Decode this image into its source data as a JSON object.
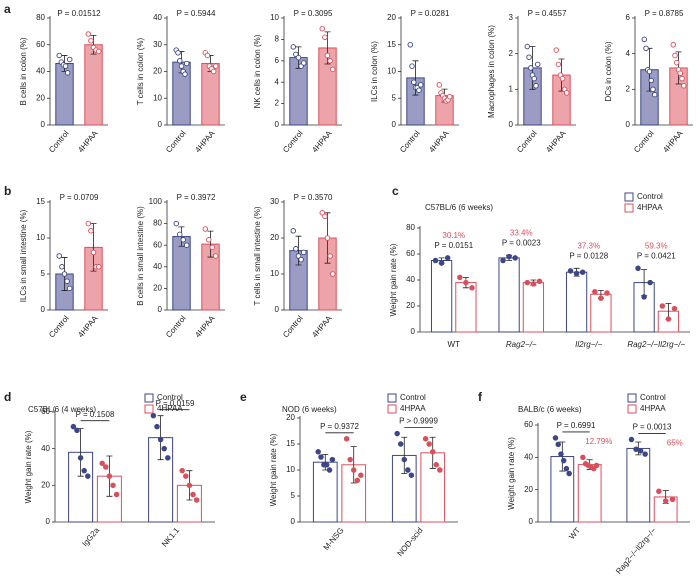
{
  "chart_data": [
    {
      "type": "bar",
      "panel": "a",
      "ylabel": "B cells in colon (%)",
      "categories": [
        "Control",
        "4HPAA"
      ],
      "p_label": "P = 0.01512",
      "ylim": [
        0,
        80
      ],
      "yticks": [
        0,
        20,
        40,
        60,
        80
      ],
      "points_filled": false,
      "series": [
        {
          "colors": [
            "#9a9cc4",
            "#eda3aa"
          ],
          "edge_colors": [
            "#3d4787",
            "#d9505c"
          ],
          "values": [
            46,
            60
          ],
          "errors": [
            6,
            7
          ],
          "points": [
            [
              52,
              47,
              45,
              44,
              39,
              49
            ],
            [
              68,
              63,
              58,
              56,
              55
            ]
          ]
        }
      ]
    },
    {
      "type": "bar",
      "ylabel": "T cells in colon (%)",
      "categories": [
        "Control",
        "4HPAA"
      ],
      "p_label": "P = 0.5944",
      "ylim": [
        0,
        40
      ],
      "yticks": [
        0,
        10,
        20,
        30,
        40
      ],
      "points_filled": false,
      "series": [
        {
          "colors": [
            "#9a9cc4",
            "#eda3aa"
          ],
          "edge_colors": [
            "#3d4787",
            "#d9505c"
          ],
          "values": [
            23.5,
            23
          ],
          "errors": [
            4,
            3
          ],
          "points": [
            [
              28,
              27,
              24,
              22,
              20,
              19,
              23
            ],
            [
              27,
              26,
              22,
              21,
              20,
              22
            ]
          ]
        }
      ]
    },
    {
      "type": "bar",
      "ylabel": "NK cells in colon (%)",
      "categories": [
        "Control",
        "4HPAA"
      ],
      "p_label": "P = 0.3095",
      "ylim": [
        0,
        10
      ],
      "yticks": [
        0,
        2,
        4,
        6,
        8,
        10
      ],
      "points_filled": false,
      "series": [
        {
          "colors": [
            "#9a9cc4",
            "#eda3aa"
          ],
          "edge_colors": [
            "#3d4787",
            "#d9505c"
          ],
          "values": [
            6.3,
            7.2
          ],
          "errors": [
            1,
            1.5
          ],
          "points": [
            [
              7.3,
              6.6,
              6.3,
              5.5,
              5.8
            ],
            [
              9,
              8.2,
              6.5,
              6,
              5.2
            ]
          ]
        }
      ]
    },
    {
      "type": "bar",
      "ylabel": "ILCs in colon (%)",
      "categories": [
        "Control",
        "4HPAA"
      ],
      "p_label": "P = 0.0281",
      "ylim": [
        0,
        20
      ],
      "yticks": [
        0,
        5,
        10,
        15,
        20
      ],
      "points_filled": false,
      "series": [
        {
          "colors": [
            "#9a9cc4",
            "#eda3aa"
          ],
          "edge_colors": [
            "#3d4787",
            "#d9505c"
          ],
          "values": [
            8.8,
            5.5
          ],
          "errors": [
            3.2,
            1.2
          ],
          "points": [
            [
              15,
              11,
              8,
              7,
              7,
              6.5,
              7.5
            ],
            [
              7.5,
              6,
              5.5,
              5,
              4.5,
              4.7,
              5.3
            ]
          ]
        }
      ]
    },
    {
      "type": "bar",
      "ylabel": "Macrophages in colon (%)",
      "categories": [
        "Control",
        "4HPAA"
      ],
      "p_label": "P = 0.4557",
      "ylim": [
        0,
        3
      ],
      "yticks": [
        0,
        1,
        2,
        3
      ],
      "points_filled": false,
      "series": [
        {
          "colors": [
            "#9a9cc4",
            "#eda3aa"
          ],
          "edge_colors": [
            "#3d4787",
            "#d9505c"
          ],
          "values": [
            1.6,
            1.4
          ],
          "errors": [
            0.6,
            0.45
          ],
          "points": [
            [
              2.2,
              1.9,
              1.6,
              1.4,
              1.3,
              1.1,
              1.7
            ],
            [
              2.1,
              1.7,
              1.4,
              1.3,
              1,
              0.9
            ]
          ]
        }
      ]
    },
    {
      "type": "bar",
      "ylabel": "DCs in colon (%)",
      "categories": [
        "Control",
        "4HPAA"
      ],
      "p_label": "P = 0.8785",
      "ylim": [
        0,
        6
      ],
      "yticks": [
        0,
        2,
        4,
        6
      ],
      "points_filled": false,
      "series": [
        {
          "colors": [
            "#9a9cc4",
            "#eda3aa"
          ],
          "edge_colors": [
            "#3d4787",
            "#d9505c"
          ],
          "values": [
            3.1,
            3.2
          ],
          "errors": [
            1.2,
            0.9
          ],
          "points": [
            [
              4.8,
              4.3,
              3.1,
              3,
              2.5,
              2,
              1.7
            ],
            [
              4.5,
              3.9,
              3.5,
              3.1,
              2.9,
              2.6,
              2.2
            ]
          ]
        }
      ]
    },
    {
      "type": "bar",
      "panel": "b",
      "ylabel": "ILCs in small intestine (%)",
      "categories": [
        "Control",
        "4HPAA"
      ],
      "p_label": "P = 0.0709",
      "ylim": [
        0,
        15
      ],
      "yticks": [
        0,
        5,
        10,
        15
      ],
      "points_filled": false,
      "series": [
        {
          "colors": [
            "#9a9cc4",
            "#eda3aa"
          ],
          "edge_colors": [
            "#3d4787",
            "#d9505c"
          ],
          "values": [
            5,
            8.7
          ],
          "errors": [
            2.3,
            3.3
          ],
          "points": [
            [
              7.5,
              6,
              5,
              4,
              3
            ],
            [
              12,
              11,
              8,
              6,
              6
            ]
          ]
        }
      ]
    },
    {
      "type": "bar",
      "ylabel": "B cells in small intestine (%)",
      "categories": [
        "Control",
        "4HPAA"
      ],
      "p_label": "P = 0.3972",
      "ylim": [
        0,
        100
      ],
      "yticks": [
        0,
        20,
        40,
        60,
        80,
        100
      ],
      "points_filled": false,
      "series": [
        {
          "colors": [
            "#9a9cc4",
            "#eda3aa"
          ],
          "edge_colors": [
            "#3d4787",
            "#d9505c"
          ],
          "values": [
            68,
            61
          ],
          "errors": [
            9,
            12
          ],
          "points": [
            [
              80,
              70,
              65,
              60
            ],
            [
              75,
              65,
              58,
              50
            ]
          ]
        }
      ]
    },
    {
      "type": "bar",
      "ylabel": "T cells in small intestine (%)",
      "categories": [
        "Control",
        "4HPAA"
      ],
      "p_label": "P = 0.3570",
      "ylim": [
        0,
        30
      ],
      "yticks": [
        0,
        10,
        20,
        30
      ],
      "points_filled": false,
      "series": [
        {
          "colors": [
            "#9a9cc4",
            "#eda3aa"
          ],
          "edge_colors": [
            "#3d4787",
            "#d9505c"
          ],
          "values": [
            16.5,
            20
          ],
          "errors": [
            4,
            7
          ],
          "points": [
            [
              22,
              17,
              15,
              14,
              16
            ],
            [
              27,
              26,
              20,
              15,
              10
            ]
          ]
        }
      ]
    },
    {
      "type": "bar",
      "panel": "c",
      "title": "C57BL/6 (6 weeks)",
      "ylabel": "Weight gain rate (%)",
      "categories": [
        "WT",
        "Rag2−/−",
        "Il2rg−/−",
        "Rag2−/−Il2rg−/−"
      ],
      "p_labels": [
        "P = 0.0151",
        "P = 0.0023",
        "P = 0.0128",
        "P = 0.0421"
      ],
      "annotations": [
        "30.1%",
        "33.4%",
        "37.3%",
        "59.3%"
      ],
      "annotation_color": "#d9505c",
      "bracket": false,
      "ylim": [
        0,
        80
      ],
      "yticks": [
        0,
        20,
        40,
        60,
        80
      ],
      "points_filled": true,
      "series": [
        {
          "name": "Control",
          "color": "#3d4787",
          "values": [
            55,
            57,
            46,
            38
          ],
          "errors": [
            2,
            2,
            3,
            10
          ],
          "points": [
            [
              55,
              53,
              57
            ],
            [
              55,
              58,
              57
            ],
            [
              47,
              45,
              46
            ],
            [
              49,
              27,
              38
            ]
          ]
        },
        {
          "name": "4HPAA",
          "color": "#d9505c",
          "values": [
            38,
            38,
            29,
            16
          ],
          "errors": [
            4,
            2,
            3,
            6
          ],
          "points": [
            [
              42,
              38,
              34
            ],
            [
              38,
              37,
              39
            ],
            [
              31,
              26,
              30
            ],
            [
              20,
              10,
              18
            ]
          ]
        }
      ]
    },
    {
      "type": "bar",
      "panel": "d",
      "title": "C57BL/6 (4 weeks)",
      "ylabel": "Weight gain rate (%)",
      "categories": [
        "IgG2a",
        "NK1.1"
      ],
      "p_labels": [
        "P = 0.1508",
        "P = 0.0159"
      ],
      "bracket": true,
      "ylim": [
        0,
        60
      ],
      "yticks": [
        0,
        20,
        40,
        60
      ],
      "points_filled": true,
      "series": [
        {
          "name": "Control",
          "color": "#3d4787",
          "values": [
            38,
            46
          ],
          "errors": [
            13,
            12
          ],
          "points": [
            [
              52,
              50,
              35,
              28,
              25
            ],
            [
              58,
              52,
              45,
              40,
              35
            ]
          ]
        },
        {
          "name": "4HPAA",
          "color": "#d9505c",
          "values": [
            25,
            20
          ],
          "errors": [
            11,
            8
          ],
          "points": [
            [
              32,
              30,
              25,
              20,
              15
            ],
            [
              28,
              25,
              20,
              15,
              12
            ]
          ]
        }
      ]
    },
    {
      "type": "bar",
      "panel": "e",
      "title": "NOD (6 weeks)",
      "ylabel": "Weight gain rate (%)",
      "categories": [
        "M-NSG",
        "NOD-scid"
      ],
      "p_labels": [
        "P = 0.9372",
        "P > 0.9999"
      ],
      "bracket": true,
      "ylim": [
        0,
        20
      ],
      "yticks": [
        0,
        5,
        10,
        15,
        20
      ],
      "points_filled": true,
      "series": [
        {
          "name": "Control",
          "color": "#3d4787",
          "values": [
            11.5,
            12.8
          ],
          "errors": [
            1.5,
            3.5
          ],
          "points": [
            [
              13.5,
              12.5,
              11,
              11,
              10,
              12
            ],
            [
              17,
              15,
              12,
              10,
              9
            ]
          ]
        },
        {
          "name": "4HPAA",
          "color": "#d9505c",
          "values": [
            11,
            13.3
          ],
          "errors": [
            3.5,
            3
          ],
          "points": [
            [
              16,
              12,
              10,
              8,
              9
            ],
            [
              16,
              15,
              13.5,
              11,
              10
            ]
          ]
        }
      ]
    },
    {
      "type": "bar",
      "panel": "f",
      "title": "BALB/c (6 weeks)",
      "ylabel": "Weight gain rate (%)",
      "categories": [
        "WT",
        "Rag2−/−Il2rg−/−"
      ],
      "p_labels": [
        "P = 0.6991",
        "P = 0.0013"
      ],
      "annotations": [
        "12.79%",
        "65%"
      ],
      "annotation_color": "#d9505c",
      "bracket": true,
      "ylim": [
        0,
        60
      ],
      "yticks": [
        0,
        20,
        40,
        60
      ],
      "points_filled": true,
      "series": [
        {
          "name": "Control",
          "color": "#3d4787",
          "values": [
            40.5,
            45.5
          ],
          "errors": [
            9,
            4
          ],
          "points": [
            [
              52,
              48,
              42,
              38,
              33,
              30
            ],
            [
              51,
              45,
              44,
              42
            ]
          ]
        },
        {
          "name": "4HPAA",
          "color": "#d9505c",
          "values": [
            35.5,
            15.5
          ],
          "errors": [
            3,
            4
          ],
          "points": [
            [
              40,
              36,
              35,
              34,
              33,
              35
            ],
            [
              19,
              13,
              14
            ]
          ]
        }
      ]
    }
  ]
}
